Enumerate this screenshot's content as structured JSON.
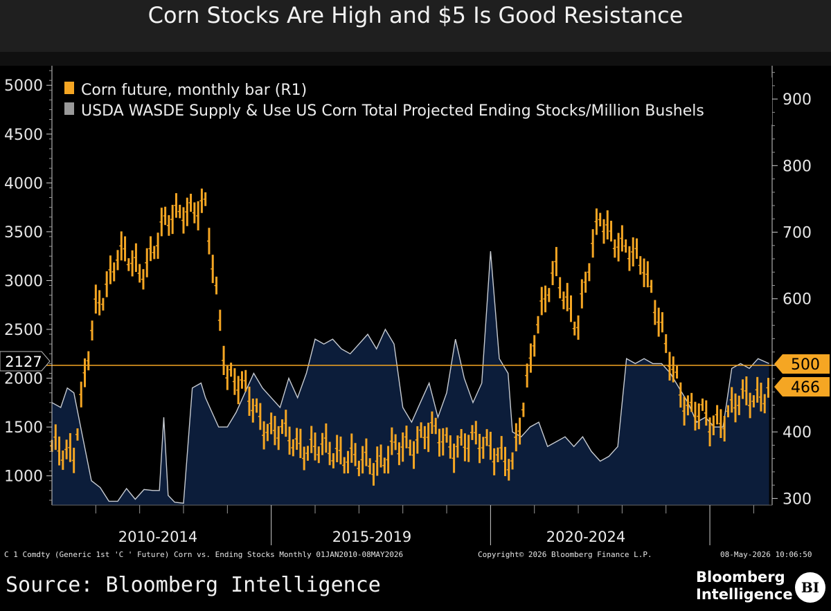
{
  "title": "Corn Stocks Are High and $5 Is Good Resistance",
  "footer": {
    "left": "C 1 Comdty (Generic 1st 'C ' Future) Corn vs. Ending Stocks Monthly 01JAN2010-08MAY2026",
    "center": "Copyright© 2026 Bloomberg Finance L.P.",
    "right": "08-May-2026 10:06:50"
  },
  "source": "Source: Bloomberg Intelligence",
  "logo": {
    "line1": "Bloomberg",
    "line2": "Intelligence",
    "badge": "BI"
  },
  "colors": {
    "corn": "#f5a623",
    "stocks_fill": "#0c1d3a",
    "stocks_line": "#c8ccd2",
    "background": "#000000",
    "reference": "#f5a623"
  },
  "chart_data": {
    "type": "bar",
    "title": "Corn Stocks Are High and $5 Is Good Resistance",
    "x_range": [
      "2010-01",
      "2026-05"
    ],
    "x_groups": [
      "2010-2014",
      "2015-2019",
      "2020-2024"
    ],
    "left_axis": {
      "ylim": [
        700,
        5200
      ],
      "ticks": [
        1000,
        1500,
        2000,
        2500,
        3000,
        3500,
        4000,
        4500,
        5000
      ]
    },
    "right_axis": {
      "ylim": [
        290,
        950
      ],
      "ticks": [
        300,
        400,
        500,
        600,
        700,
        800,
        900
      ]
    },
    "grid": false,
    "legend_position": "top-left",
    "legend": [
      "Corn future, monthly bar (R1)",
      "USDA WASDE Supply & Use US Corn Total Projected Ending Stocks/Million Bushels"
    ],
    "last_values": {
      "stocks": "2127",
      "corn_reference": "500",
      "corn_last": "466"
    },
    "reference_line": {
      "axis": "right",
      "value": 500
    },
    "series": [
      {
        "name": "USDA WASDE Supply & Use US Corn Total Projected Ending Stocks/Million Bushels",
        "axis": "left",
        "kind": "area",
        "x": [
          2010.0,
          2010.2,
          2010.35,
          2010.5,
          2010.7,
          2010.9,
          2011.1,
          2011.3,
          2011.5,
          2011.7,
          2011.9,
          2012.1,
          2012.3,
          2012.45,
          2012.55,
          2012.65,
          2012.8,
          2013.0,
          2013.2,
          2013.4,
          2013.5,
          2013.6,
          2013.8,
          2014.0,
          2014.2,
          2014.4,
          2014.6,
          2014.8,
          2015.0,
          2015.2,
          2015.4,
          2015.6,
          2015.8,
          2016.0,
          2016.2,
          2016.4,
          2016.6,
          2016.8,
          2017.0,
          2017.2,
          2017.4,
          2017.6,
          2017.8,
          2018.0,
          2018.2,
          2018.4,
          2018.6,
          2018.8,
          2019.0,
          2019.2,
          2019.4,
          2019.6,
          2019.8,
          2020.0,
          2020.2,
          2020.4,
          2020.5,
          2020.7,
          2020.9,
          2021.1,
          2021.3,
          2021.5,
          2021.7,
          2021.9,
          2022.1,
          2022.3,
          2022.5,
          2022.7,
          2022.9,
          2023.1,
          2023.3,
          2023.5,
          2023.7,
          2023.9,
          2024.1,
          2024.3,
          2024.5,
          2024.7,
          2024.9,
          2025.1,
          2025.3,
          2025.5,
          2025.7,
          2025.9,
          2026.1,
          2026.35
        ],
        "values": [
          1750,
          1700,
          1900,
          1850,
          1400,
          950,
          880,
          740,
          740,
          870,
          760,
          860,
          850,
          850,
          1600,
          800,
          730,
          720,
          1900,
          1950,
          1800,
          1700,
          1500,
          1500,
          1650,
          1850,
          2050,
          1900,
          1800,
          1700,
          2000,
          1800,
          2050,
          2400,
          2350,
          2400,
          2300,
          2250,
          2350,
          2450,
          2300,
          2500,
          2350,
          1700,
          1550,
          1750,
          1950,
          1600,
          1850,
          2400,
          2000,
          1750,
          1950,
          3300,
          2200,
          2050,
          1450,
          1400,
          1500,
          1550,
          1300,
          1350,
          1400,
          1300,
          1400,
          1250,
          1150,
          1200,
          1300,
          2200,
          2150,
          2200,
          2150,
          2150,
          2050,
          1900,
          1750,
          1550,
          1600,
          1500,
          1500,
          2100,
          2150,
          2100,
          2200,
          2150
        ]
      },
      {
        "name": "Corn future, monthly bar (R1)",
        "axis": "right",
        "kind": "bar",
        "x": [
          2010.0,
          2010.5,
          2011.0,
          2011.5,
          2012.0,
          2012.5,
          2013.0,
          2013.5,
          2014.0,
          2014.5,
          2015.0,
          2015.5,
          2016.0,
          2016.5,
          2017.0,
          2017.5,
          2018.0,
          2018.5,
          2019.0,
          2019.5,
          2020.0,
          2020.5,
          2021.0,
          2021.5,
          2022.0,
          2022.5,
          2023.0,
          2023.5,
          2024.0,
          2024.5,
          2025.0,
          2025.5,
          2026.0,
          2026.35
        ],
        "values": [
          370,
          375,
          580,
          670,
          640,
          700,
          740,
          730,
          490,
          450,
          400,
          390,
          370,
          375,
          350,
          360,
          375,
          400,
          385,
          380,
          385,
          340,
          550,
          640,
          560,
          730,
          670,
          660,
          520,
          440,
          410,
          435,
          455,
          466
        ]
      }
    ]
  }
}
